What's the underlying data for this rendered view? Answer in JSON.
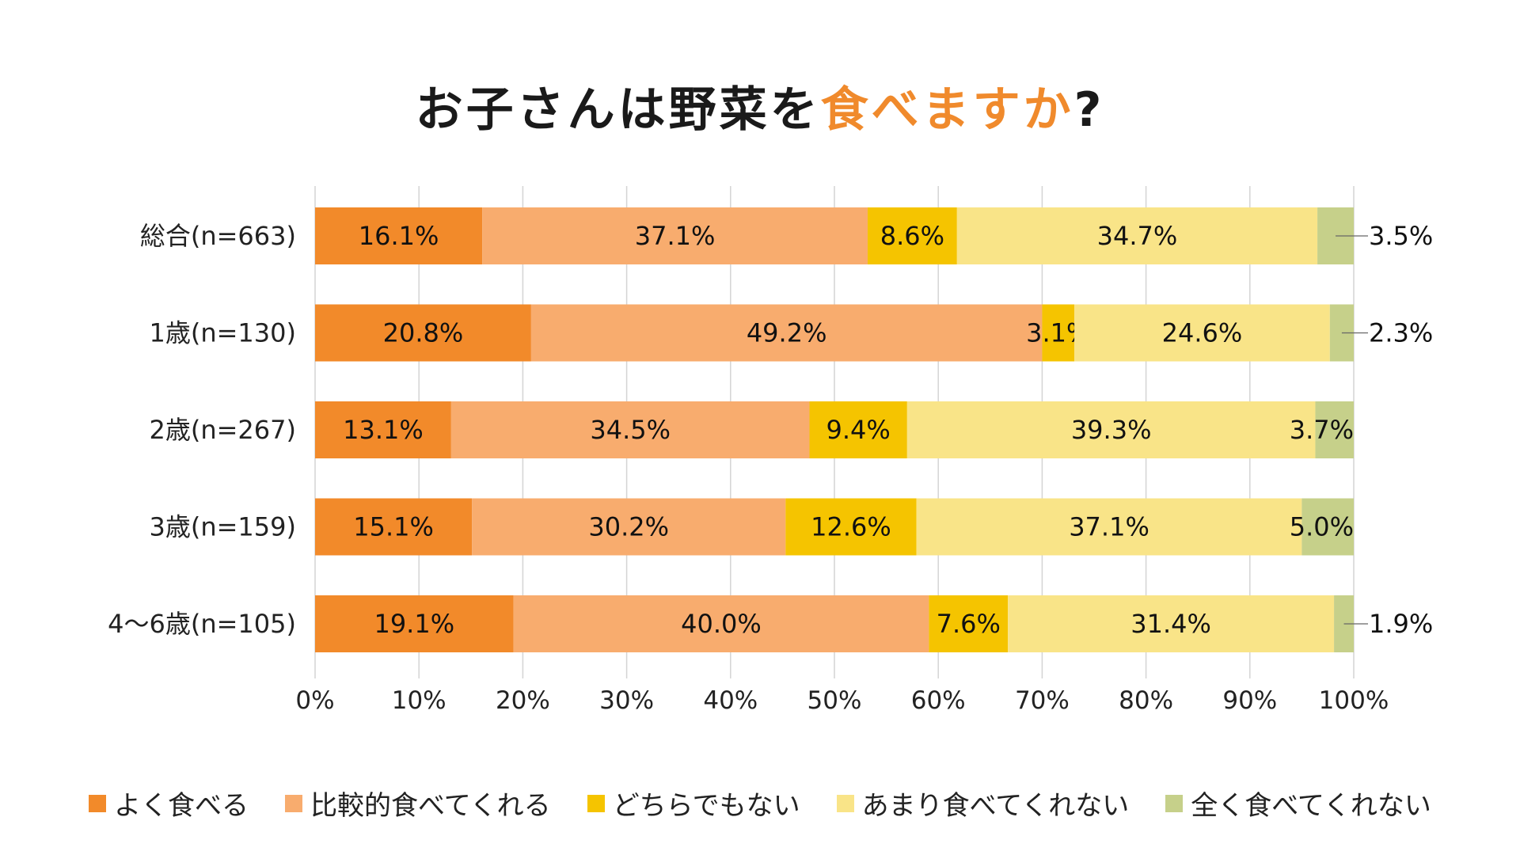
{
  "chart_data": {
    "type": "bar",
    "orientation": "horizontal",
    "stacked": true,
    "title_main": "お子さんは野菜を",
    "title_accent": "食べますか",
    "title_end": "?",
    "categories": [
      "総合(n=663)",
      "1歳(n=130)",
      "2歳(n=267)",
      "3歳(n=159)",
      "4〜6歳(n=105)"
    ],
    "series": [
      {
        "name": "よく食べる",
        "color": "#f28a2a",
        "values": [
          16.1,
          20.8,
          13.1,
          15.1,
          19.1
        ]
      },
      {
        "name": "比較的食べてくれる",
        "color": "#f8ac6e",
        "values": [
          37.1,
          49.2,
          34.5,
          30.2,
          40.0
        ]
      },
      {
        "name": "どちらでもない",
        "color": "#f5c400",
        "values": [
          8.6,
          3.1,
          9.4,
          12.6,
          7.6
        ]
      },
      {
        "name": "あまり食べてくれない",
        "color": "#f9e488",
        "values": [
          34.7,
          24.6,
          39.3,
          37.1,
          31.4
        ]
      },
      {
        "name": "全く食べてくれない",
        "color": "#c6d08a",
        "values": [
          3.5,
          2.3,
          3.7,
          5.0,
          1.9
        ]
      }
    ],
    "xlim": [
      0,
      100
    ],
    "xticks": [
      "0%",
      "10%",
      "20%",
      "30%",
      "40%",
      "50%",
      "60%",
      "70%",
      "80%",
      "90%",
      "100%"
    ],
    "grid": true,
    "legend_position": "bottom"
  }
}
